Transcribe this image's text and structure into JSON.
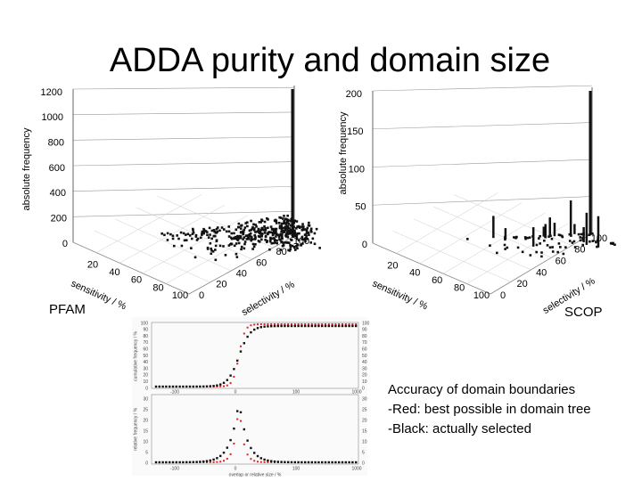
{
  "title": "ADDA purity and domain size",
  "pfam": {
    "label": "PFAM",
    "z_axis_label": "absolute frequency",
    "z_ticks": [
      "0",
      "200",
      "400",
      "600",
      "800",
      "1000",
      "1200"
    ],
    "x_axis_label": "sensitivity / %",
    "x_ticks": [
      "20",
      "40",
      "60",
      "80",
      "100"
    ],
    "y_axis_label": "selectivity / %",
    "y_ticks": [
      "0",
      "20",
      "40",
      "60",
      "80",
      "100"
    ]
  },
  "scop": {
    "label": "SCOP",
    "z_axis_label": "absolute frequency",
    "z_ticks": [
      "0",
      "50",
      "100",
      "150",
      "200"
    ],
    "x_axis_label": "sensitivity / %",
    "x_ticks": [
      "20",
      "40",
      "60",
      "80",
      "100"
    ],
    "y_axis_label": "selectivity / %",
    "y_ticks": [
      "0",
      "20",
      "40",
      "60",
      "80",
      "100"
    ]
  },
  "boundary_plot": {
    "top_axis_label": "cumulative frequency / %",
    "top_ticks": [
      "0",
      "10",
      "20",
      "30",
      "40",
      "50",
      "60",
      "70",
      "80",
      "90",
      "100"
    ],
    "bottom_axis_label": "relative frequency / %",
    "bottom_ticks": [
      "0",
      "5",
      "10",
      "15",
      "20",
      "25",
      "30"
    ],
    "x_ticks": [
      "-100",
      "0",
      "100",
      "1000"
    ],
    "x_axis_label": "overlap or relative size / %"
  },
  "caption": [
    "Accuracy of domain boundaries",
    "-Red: best possible in domain tree",
    "-Black: actually selected"
  ]
}
